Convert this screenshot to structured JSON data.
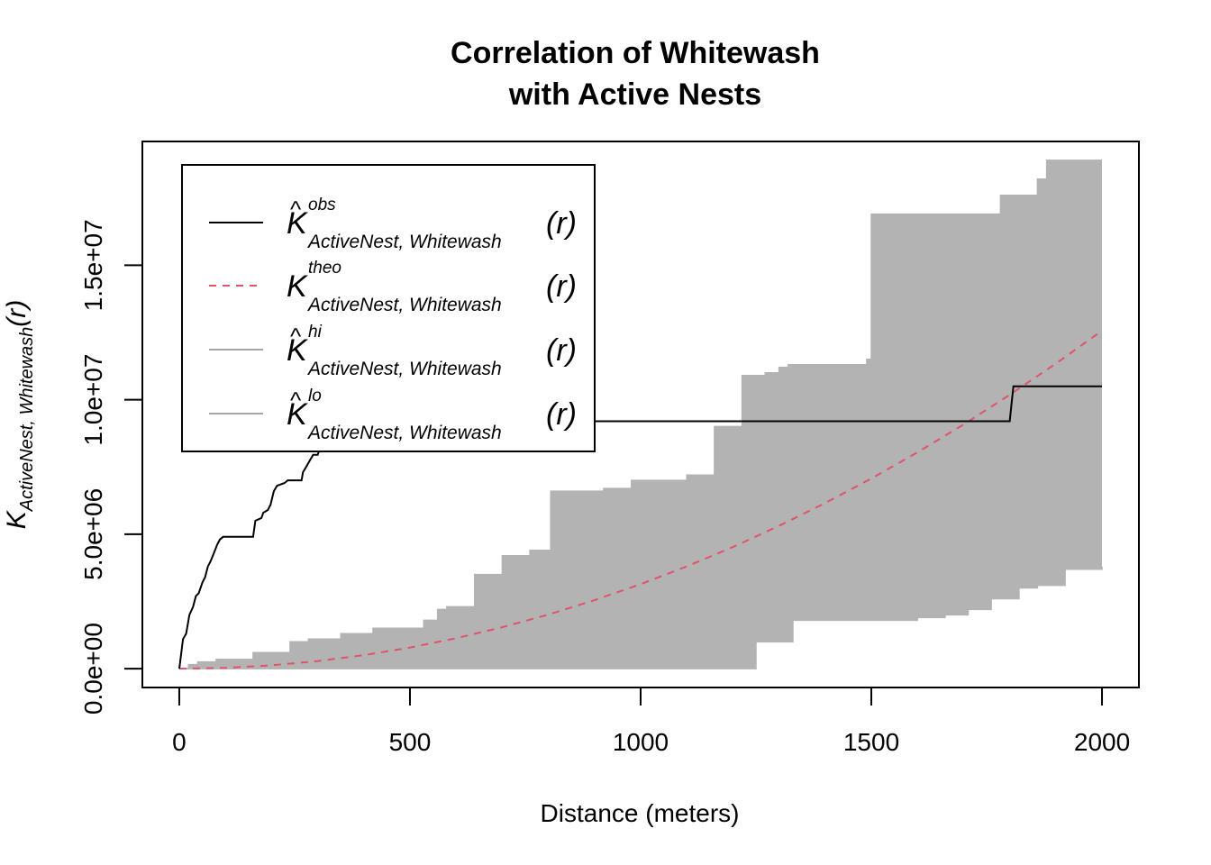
{
  "chart_data": {
    "type": "line",
    "title": [
      "Correlation of Whitewash",
      "with Active Nests"
    ],
    "xlabel": "Distance (meters)",
    "ylabel": {
      "base": "K",
      "sub": "ActiveNest, Whitewash",
      "arg": "(r)"
    },
    "xlim": [
      -80,
      2080
    ],
    "ylim": [
      -700000,
      19600000
    ],
    "xticks": [
      0,
      500,
      1000,
      1500,
      2000
    ],
    "xtick_labels": [
      "0",
      "500",
      "1000",
      "1500",
      "2000"
    ],
    "yticks": [
      0,
      5000000,
      10000000,
      15000000
    ],
    "ytick_labels": [
      "0.0e+00",
      "5.0e+06",
      "1.0e+07",
      "1.5e+07"
    ],
    "grid": false,
    "legend_position": "top-left",
    "colors": {
      "obs": "#000000",
      "theo": "#DF536B",
      "envelope": "#B3B3B3",
      "legend_envelope": "#A6A6A6"
    },
    "legend": [
      {
        "key": "obs",
        "base": "K",
        "hat": true,
        "sup": "obs",
        "sub": "ActiveNest, Whitewash",
        "arg": "(r)",
        "style": "solid"
      },
      {
        "key": "theo",
        "base": "K",
        "hat": false,
        "sup": "theo",
        "sub": "ActiveNest, Whitewash",
        "arg": "(r)",
        "style": "dashed"
      },
      {
        "key": "hi",
        "base": "K",
        "hat": true,
        "sup": "hi",
        "sub": "ActiveNest, Whitewash",
        "arg": "(r)",
        "style": "solid"
      },
      {
        "key": "lo",
        "base": "K",
        "hat": true,
        "sup": "lo",
        "sub": "ActiveNest, Whitewash",
        "arg": "(r)",
        "style": "solid"
      }
    ],
    "series": [
      {
        "key": "obs",
        "x": [
          0,
          8,
          15,
          22,
          30,
          36,
          42,
          50,
          56,
          62,
          68,
          75,
          82,
          88,
          95,
          160,
          165,
          178,
          182,
          192,
          198,
          205,
          212,
          228,
          235,
          248,
          255,
          265,
          268,
          275,
          285,
          290,
          300,
          305,
          320,
          335,
          340,
          450,
          610,
          615,
          800,
          808,
          1800,
          1808,
          2000
        ],
        "y": [
          0,
          1100000,
          1300000,
          2000000,
          2300000,
          2700000,
          2800000,
          3200000,
          3400000,
          3800000,
          4000000,
          4300000,
          4600000,
          4800000,
          4900000,
          4900000,
          5500000,
          5600000,
          5800000,
          5900000,
          6100000,
          6600000,
          6800000,
          6900000,
          7000000,
          7000000,
          7000000,
          7000000,
          7300000,
          7500000,
          7800000,
          7950000,
          7950000,
          8200000,
          8200000,
          8200000,
          8300000,
          8300000,
          8300000,
          8900000,
          8900000,
          9200000,
          9200000,
          10500000,
          10500000
        ]
      },
      {
        "key": "theo",
        "x": [
          0,
          100,
          200,
          300,
          400,
          500,
          600,
          700,
          800,
          900,
          1000,
          1100,
          1200,
          1300,
          1400,
          1500,
          1600,
          1700,
          1800,
          1900,
          2000
        ],
        "y": [
          0,
          31400,
          125700,
          282700,
          502700,
          785400,
          1131000,
          1539400,
          2010600,
          2544700,
          3141600,
          3801300,
          4523900,
          5309300,
          6157500,
          7068600,
          8042500,
          9079200,
          10178800,
          11341100,
          12566400
        ]
      },
      {
        "key": "hi",
        "x": [
          0,
          20,
          40,
          80,
          160,
          240,
          280,
          350,
          420,
          530,
          560,
          580,
          640,
          700,
          760,
          805,
          920,
          980,
          1100,
          1160,
          1220,
          1270,
          1300,
          1320,
          1360,
          1490,
          1500,
          1600,
          1780,
          1860,
          1880,
          1940,
          2000
        ],
        "y": [
          0,
          150000,
          250000,
          350000,
          600000,
          1000000,
          1100000,
          1300000,
          1500000,
          1800000,
          2200000,
          2300000,
          3500000,
          4200000,
          4400000,
          6600000,
          6700000,
          7000000,
          7200000,
          9000000,
          10900000,
          11000000,
          11200000,
          11300000,
          11300000,
          11500000,
          16900000,
          16900000,
          17600000,
          18200000,
          18900000,
          18900000,
          18900000
        ]
      },
      {
        "key": "lo",
        "x": [
          0,
          1240,
          1250,
          1330,
          1400,
          1600,
          1660,
          1710,
          1760,
          1820,
          1860,
          1920,
          2000
        ],
        "y": [
          0,
          0,
          1000000,
          1800000,
          1800000,
          1900000,
          2000000,
          2200000,
          2600000,
          3000000,
          3100000,
          3700000,
          3800000
        ]
      }
    ]
  }
}
